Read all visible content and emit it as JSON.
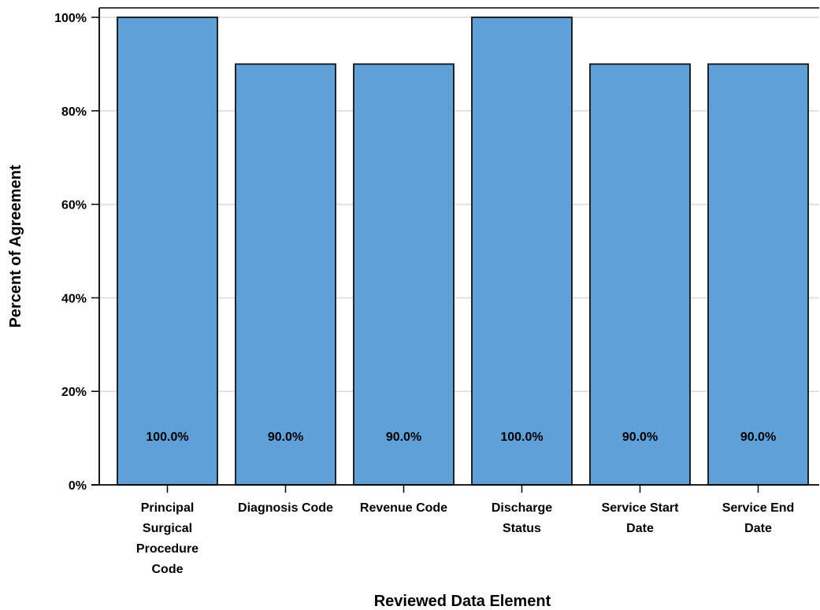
{
  "chart_data": {
    "type": "bar",
    "title": "",
    "xlabel": "Reviewed Data Element",
    "ylabel": "Percent of Agreement",
    "ylim": [
      0,
      100
    ],
    "yticks": [
      0,
      20,
      40,
      60,
      80,
      100
    ],
    "ytick_labels": [
      "0%",
      "20%",
      "40%",
      "60%",
      "80%",
      "100%"
    ],
    "categories": [
      [
        "Principal",
        "Surgical",
        "Procedure",
        "Code"
      ],
      [
        "Diagnosis Code"
      ],
      [
        "Revenue Code"
      ],
      [
        "Discharge",
        "Status"
      ],
      [
        "Service Start",
        "Date"
      ],
      [
        "Service End",
        "Date"
      ]
    ],
    "values": [
      100,
      90,
      90,
      100,
      90,
      90
    ],
    "data_labels": [
      "100.0%",
      "90.0%",
      "90.0%",
      "100.0%",
      "90.0%",
      "90.0%"
    ],
    "bar_color": "#5fa0d8",
    "bar_edge_color": "#111111",
    "grid": true,
    "grid_color": "#d9d9d9",
    "legend": "none"
  }
}
